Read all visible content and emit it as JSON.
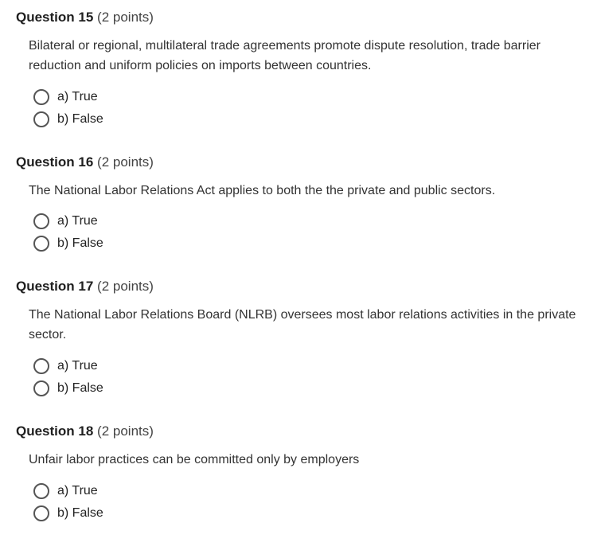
{
  "questions": [
    {
      "number": "Question 15",
      "points": "(2 points)",
      "text": "Bilateral or regional, multilateral trade agreements promote dispute resolution, trade barrier reduction and uniform policies on imports between countries.",
      "options": [
        {
          "label": "a) True"
        },
        {
          "label": "b) False"
        }
      ]
    },
    {
      "number": "Question 16",
      "points": "(2 points)",
      "text": "The National Labor Relations Act applies to both the the private and public sectors.",
      "options": [
        {
          "label": "a) True"
        },
        {
          "label": "b) False"
        }
      ]
    },
    {
      "number": "Question 17",
      "points": "(2 points)",
      "text": "The National Labor Relations Board (NLRB) oversees most labor relations activities in the private sector.",
      "options": [
        {
          "label": "a) True"
        },
        {
          "label": "b) False"
        }
      ]
    },
    {
      "number": "Question 18",
      "points": "(2 points)",
      "text": "Unfair labor practices can be committed only by employers",
      "options": [
        {
          "label": "a) True"
        },
        {
          "label": "b) False"
        }
      ]
    }
  ],
  "styling": {
    "background_color": "#ffffff",
    "text_color": "#212121",
    "radio_border_color": "#555555",
    "font_family": "Arial",
    "title_fontsize": 17,
    "body_fontsize": 16
  }
}
